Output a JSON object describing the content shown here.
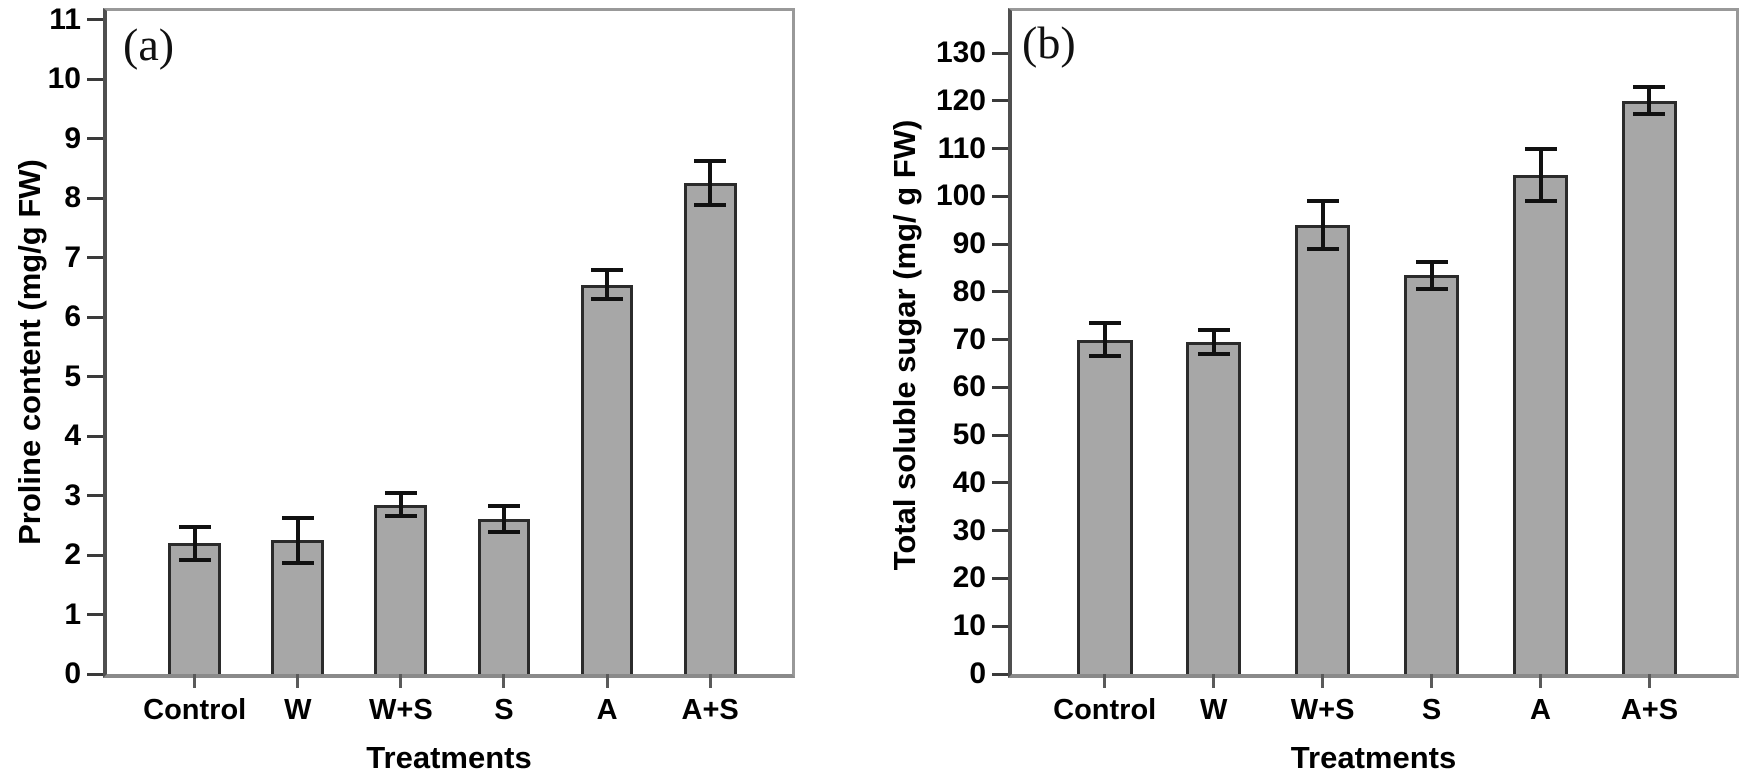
{
  "figure": {
    "background": "#ffffff",
    "bar_fill": "#a7a7a7",
    "bar_border": "#2b2b2b",
    "error_color": "#111111",
    "axis_color": "#4f4f4f",
    "frame_color": "#999999",
    "text_color": "#000000"
  },
  "chart_data": [
    {
      "type": "bar",
      "panel_label": "(a)",
      "title": "",
      "xlabel": "Treatments",
      "ylabel": "Proline content (mg/g FW)",
      "categories": [
        "Control",
        "W",
        "W+S",
        "S",
        "A",
        "A+S"
      ],
      "values": [
        2.2,
        2.25,
        2.85,
        2.6,
        6.55,
        8.25
      ],
      "errors": [
        0.28,
        0.38,
        0.2,
        0.22,
        0.25,
        0.37
      ],
      "ylim": [
        0,
        11
      ],
      "ytick_step": 1,
      "ymax_display": 11.15,
      "grid": false,
      "legend_position": "none",
      "bar_color": "gray"
    },
    {
      "type": "bar",
      "panel_label": "(b)",
      "title": "",
      "xlabel": "Treatments",
      "ylabel": "Total soluble sugar (mg/ g FW)",
      "categories": [
        "Control",
        "W",
        "W+S",
        "S",
        "A",
        "A+S"
      ],
      "values": [
        70,
        69.5,
        94,
        83.5,
        104.5,
        120
      ],
      "errors": [
        3.5,
        2.5,
        5,
        2.8,
        5.5,
        2.8
      ],
      "ylim": [
        0,
        130
      ],
      "ytick_step": 10,
      "ymax_display": 138.8,
      "grid": false,
      "legend_position": "none",
      "bar_color": "gray"
    }
  ]
}
